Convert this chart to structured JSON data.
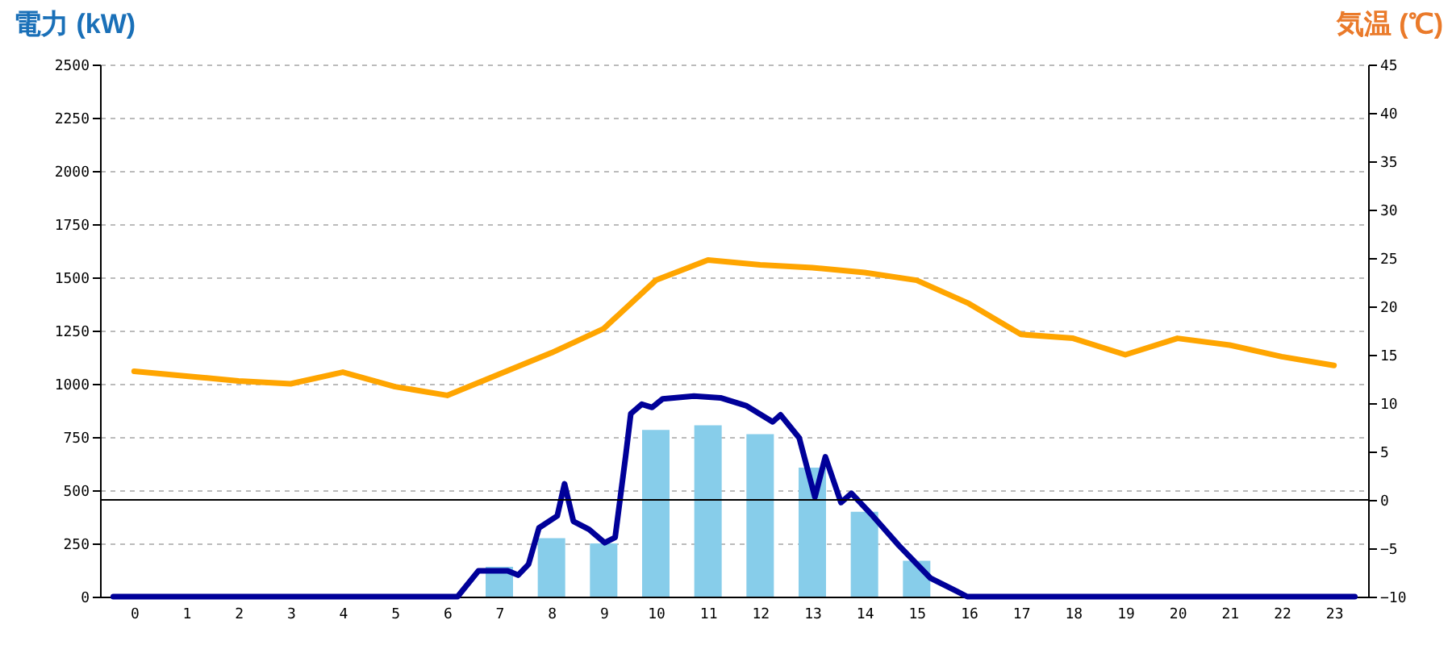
{
  "chart_data": {
    "type": "bar",
    "ylabel": "電力 (kW)",
    "y2label": "気温 (℃)",
    "x": [
      0,
      1,
      2,
      3,
      4,
      5,
      6,
      7,
      8,
      9,
      10,
      11,
      12,
      13,
      14,
      15,
      16,
      17,
      18,
      19,
      20,
      21,
      22,
      23
    ],
    "xlim": [
      -0.5,
      23.5
    ],
    "xticks": [
      0,
      1,
      2,
      3,
      4,
      5,
      6,
      7,
      8,
      9,
      10,
      11,
      12,
      13,
      14,
      15,
      16,
      17,
      18,
      19,
      20,
      21,
      22,
      23
    ],
    "ylim": [
      0,
      2500
    ],
    "yticks": [
      0,
      250,
      500,
      750,
      1000,
      1250,
      1500,
      1750,
      2000,
      2250,
      2500
    ],
    "y2lim": [
      -10,
      45
    ],
    "y2ticks": [
      -10,
      -5,
      0,
      5,
      10,
      15,
      20,
      25,
      30,
      35,
      40,
      45
    ],
    "grid": "y",
    "ref_lines": [
      {
        "axis": "y2",
        "value": 0,
        "color": "#000000"
      }
    ],
    "series": [
      {
        "type": "bar",
        "color": "#87cdea",
        "values": [
          0,
          0,
          0,
          0,
          0,
          0,
          0,
          140,
          275,
          250,
          783,
          805,
          763,
          606,
          399,
          169,
          0,
          0,
          0,
          0,
          0,
          0,
          0,
          0
        ]
      },
      {
        "type": "line",
        "color": "#000099",
        "x": [
          -0.4,
          6.2,
          6.6,
          7.16,
          7.36,
          7.56,
          7.76,
          8.11,
          8.25,
          8.42,
          8.72,
          9.02,
          9.22,
          9.42,
          9.52,
          9.73,
          9.93,
          10.13,
          10.73,
          11.24,
          11.74,
          12.24,
          12.39,
          12.75,
          13.05,
          13.25,
          13.55,
          13.75,
          14.16,
          14.66,
          15.26,
          15.77,
          15.97,
          23.4
        ],
        "values": [
          0,
          0,
          121,
          121,
          101,
          152,
          323,
          379,
          530,
          354,
          316,
          253,
          278,
          657,
          859,
          904,
          889,
          929,
          942,
          934,
          896,
          821,
          854,
          745,
          467,
          657,
          442,
          485,
          379,
          240,
          88,
          25,
          0,
          0
        ]
      },
      {
        "type": "line",
        "axis": "y2",
        "color": "#ffa500",
        "values": [
          13.3,
          12.8,
          12.3,
          12,
          13.2,
          11.7,
          10.8,
          13,
          15.2,
          17.7,
          22.7,
          24.8,
          24.3,
          24,
          23.5,
          22.7,
          20.3,
          17.1,
          16.7,
          15,
          16.7,
          16,
          14.8,
          13.9
        ]
      }
    ]
  }
}
